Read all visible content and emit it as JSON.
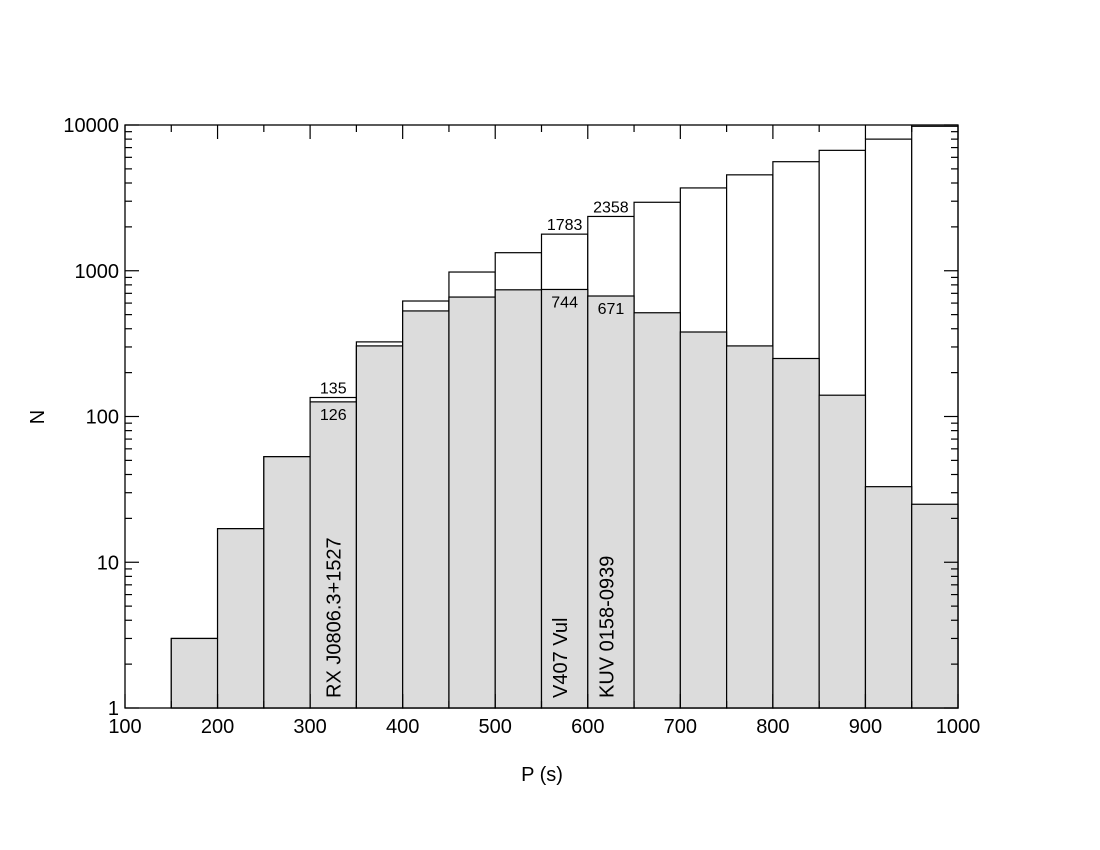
{
  "chart_data": {
    "type": "bar",
    "title": "",
    "xlabel": "P (s)",
    "ylabel": "N",
    "xlim": [
      100,
      1000
    ],
    "ylim": [
      1,
      10000
    ],
    "y_scale": "log",
    "grid": false,
    "x_ticks": [
      "100",
      "200",
      "300",
      "400",
      "500",
      "600",
      "700",
      "800",
      "900",
      "1000"
    ],
    "y_ticks": [
      "1",
      "10",
      "100",
      "1000",
      "10000"
    ],
    "bin_width": 50,
    "bin_starts": [
      150,
      200,
      250,
      300,
      350,
      400,
      450,
      500,
      550,
      600,
      650,
      700,
      750,
      800,
      850,
      900,
      950
    ],
    "series": [
      {
        "fill": "#dcdcdc",
        "values": [
          3,
          17,
          53,
          126,
          305,
          530,
          660,
          740,
          744,
          671,
          515,
          380,
          305,
          250,
          140,
          33,
          25
        ]
      },
      {
        "fill": "#ffffff",
        "values": [
          3,
          17,
          53,
          135,
          325,
          620,
          980,
          1330,
          1783,
          2358,
          2950,
          3700,
          4550,
          5600,
          6700,
          8000,
          9800
        ]
      }
    ],
    "bar_value_labels": [
      {
        "bin_start": 300,
        "text": "135",
        "position": "above-outline"
      },
      {
        "bin_start": 300,
        "text": "126",
        "position": "below-filled"
      },
      {
        "bin_start": 550,
        "text": "1783",
        "position": "above-outline"
      },
      {
        "bin_start": 550,
        "text": "744",
        "position": "below-filled"
      },
      {
        "bin_start": 600,
        "text": "2358",
        "position": "above-outline"
      },
      {
        "bin_start": 600,
        "text": "671",
        "position": "below-filled"
      }
    ],
    "annotations": [
      {
        "text": "RX J0806.3+1527",
        "x": 325
      },
      {
        "text": "V407 Vul",
        "x": 570
      },
      {
        "text": "KUV 0158-0939",
        "x": 620
      }
    ]
  }
}
